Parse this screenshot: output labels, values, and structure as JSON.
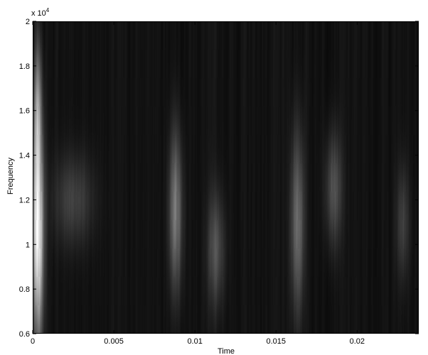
{
  "chart_data": {
    "type": "heatmap",
    "colormap": "gray",
    "background_color": "#000000",
    "xlabel": "Time",
    "ylabel": "Frequency",
    "xlim": [
      0,
      0.0238
    ],
    "ylim": [
      6000,
      20000
    ],
    "y_exponent_label": "x 10",
    "y_exponent_power": "4",
    "x_ticks": [
      {
        "value": 0,
        "label": "0"
      },
      {
        "value": 0.005,
        "label": "0.005"
      },
      {
        "value": 0.01,
        "label": "0.01"
      },
      {
        "value": 0.015,
        "label": "0.015"
      },
      {
        "value": 0.02,
        "label": "0.02"
      }
    ],
    "y_ticks": [
      {
        "value": 6000,
        "label": "0.6"
      },
      {
        "value": 8000,
        "label": "0.8"
      },
      {
        "value": 10000,
        "label": "1"
      },
      {
        "value": 12000,
        "label": "1.2"
      },
      {
        "value": 14000,
        "label": "1.4"
      },
      {
        "value": 16000,
        "label": "1.6"
      },
      {
        "value": 18000,
        "label": "1.8"
      },
      {
        "value": 20000,
        "label": "2"
      }
    ],
    "energy_bursts": [
      {
        "time": 0.0003,
        "freq_center": 10500,
        "time_width": 0.00035,
        "freq_width": 4500,
        "intensity": 1.0
      },
      {
        "time": 0.0003,
        "freq_center": 16000,
        "time_width": 0.00025,
        "freq_width": 3000,
        "intensity": 0.45
      },
      {
        "time": 0.0025,
        "freq_center": 12000,
        "time_width": 0.0012,
        "freq_width": 2000,
        "intensity": 0.22
      },
      {
        "time": 0.0088,
        "freq_center": 11500,
        "time_width": 0.0004,
        "freq_width": 3500,
        "intensity": 0.5
      },
      {
        "time": 0.0113,
        "freq_center": 9800,
        "time_width": 0.0005,
        "freq_width": 2500,
        "intensity": 0.28
      },
      {
        "time": 0.0163,
        "freq_center": 11000,
        "time_width": 0.0004,
        "freq_width": 4000,
        "intensity": 0.42
      },
      {
        "time": 0.0185,
        "freq_center": 12500,
        "time_width": 0.0005,
        "freq_width": 2500,
        "intensity": 0.3
      },
      {
        "time": 0.0228,
        "freq_center": 11000,
        "time_width": 0.0004,
        "freq_width": 2500,
        "intensity": 0.2
      }
    ]
  }
}
